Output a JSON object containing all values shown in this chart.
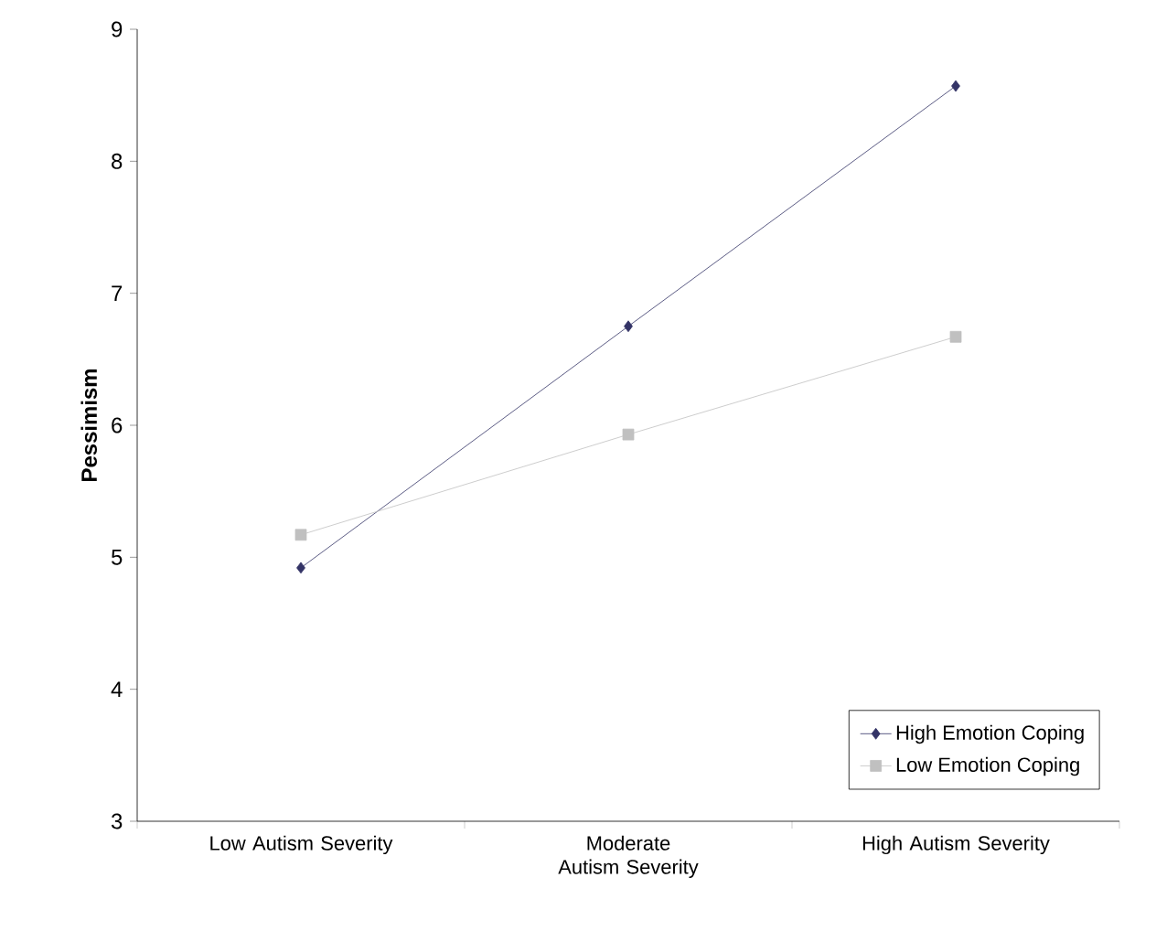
{
  "chart_data": {
    "type": "line",
    "ylabel": "Pessimism",
    "categories": [
      "Low Autism Severity",
      "Moderate Autism Severity",
      "High Autism Severity"
    ],
    "series": [
      {
        "name": "High Emotion Coping",
        "color": "#333366",
        "values": [
          4.92,
          6.75,
          8.57
        ],
        "marker": "diamond"
      },
      {
        "name": "Low Emotion Coping",
        "color": "#c0c0c0",
        "values": [
          5.17,
          5.93,
          6.67
        ],
        "marker": "square"
      }
    ],
    "ylim": [
      3,
      9
    ],
    "yticks": [
      3,
      4,
      5,
      6,
      7,
      8,
      9
    ],
    "grid": false,
    "legend": "bottom right",
    "line_style": "solid"
  }
}
